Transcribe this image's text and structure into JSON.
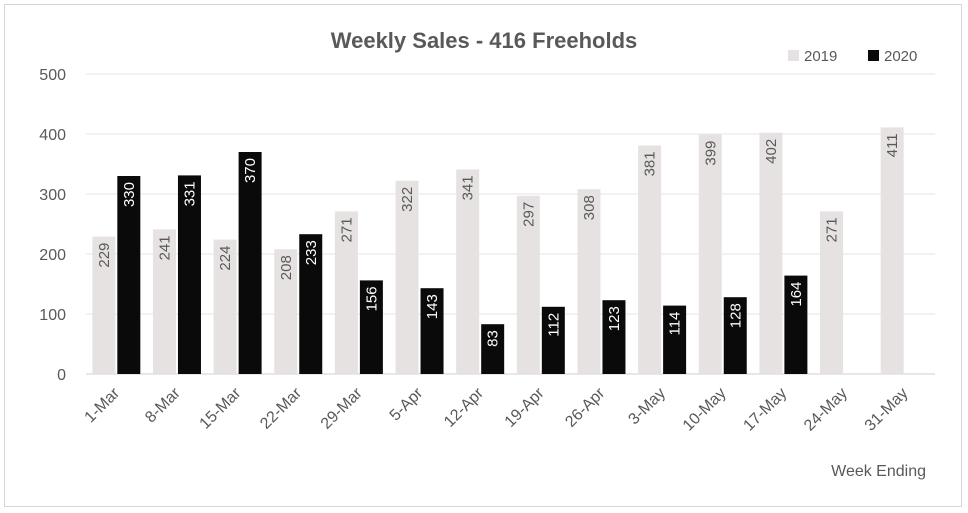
{
  "chart_data": {
    "type": "bar",
    "title": "Weekly Sales - 416 Freeholds",
    "xlabel": "Week Ending",
    "ylabel": "",
    "ylim": [
      0,
      500
    ],
    "yticks": [
      0,
      100,
      200,
      300,
      400,
      500
    ],
    "grid": true,
    "legend_position": "top-right",
    "categories": [
      "1-Mar",
      "8-Mar",
      "15-Mar",
      "22-Mar",
      "29-Mar",
      "5-Apr",
      "12-Apr",
      "19-Apr",
      "26-Apr",
      "3-May",
      "10-May",
      "17-May",
      "24-May",
      "31-May"
    ],
    "series": [
      {
        "name": "2019",
        "color": "#e6e2e2",
        "label_color": "#595959",
        "values": [
          229,
          241,
          224,
          208,
          271,
          322,
          341,
          297,
          308,
          381,
          399,
          402,
          271,
          411
        ]
      },
      {
        "name": "2020",
        "color": "#0a0a0a",
        "label_color": "#ffffff",
        "values": [
          330,
          331,
          370,
          233,
          156,
          143,
          83,
          112,
          123,
          114,
          128,
          164,
          null,
          null
        ]
      }
    ]
  }
}
